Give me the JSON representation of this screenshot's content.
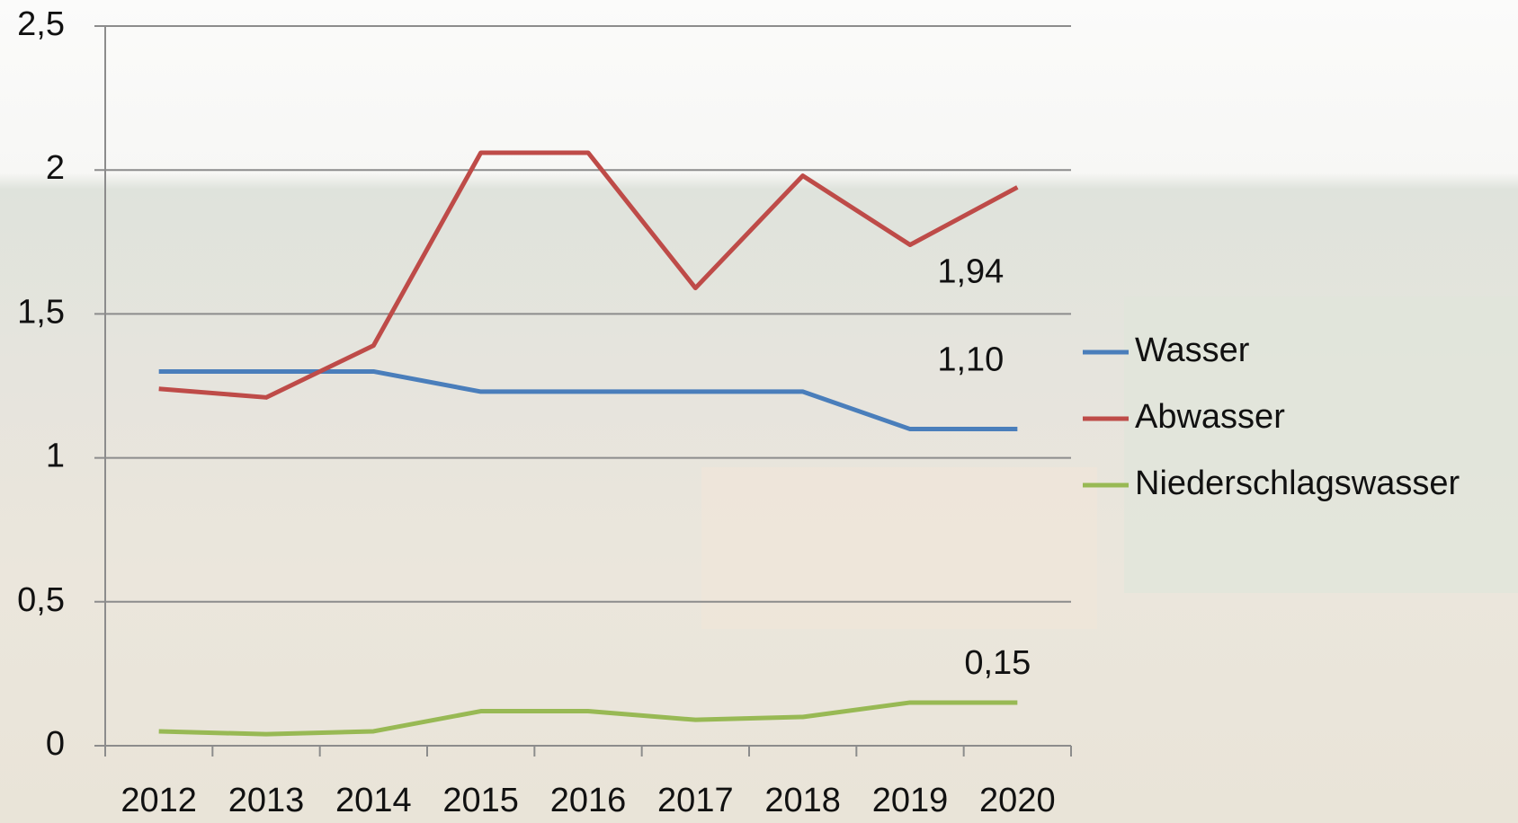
{
  "chart_data": {
    "type": "line",
    "categories": [
      "2012",
      "2013",
      "2014",
      "2015",
      "2016",
      "2017",
      "2018",
      "2019",
      "2020"
    ],
    "series": [
      {
        "name": "Wasser",
        "color": "#4a7ebb",
        "values": [
          1.3,
          1.3,
          1.3,
          1.23,
          1.23,
          1.23,
          1.23,
          1.1,
          1.1
        ],
        "value_labels": [
          null,
          null,
          null,
          null,
          null,
          null,
          null,
          null,
          "1,10"
        ]
      },
      {
        "name": "Abwasser",
        "color": "#be4b48",
        "values": [
          1.24,
          1.21,
          1.39,
          2.06,
          2.06,
          1.59,
          1.98,
          1.74,
          1.94
        ],
        "value_labels": [
          null,
          null,
          null,
          null,
          null,
          null,
          null,
          null,
          "1,94"
        ]
      },
      {
        "name": "Niederschlagswasser",
        "color": "#98b954",
        "values": [
          0.05,
          0.04,
          0.05,
          0.12,
          0.12,
          0.09,
          0.1,
          0.15,
          0.15
        ],
        "value_labels": [
          null,
          null,
          null,
          null,
          null,
          null,
          null,
          null,
          "0,15"
        ]
      }
    ],
    "ylim": [
      0,
      2.5
    ],
    "yticks": [
      0,
      {
        "value": 0.5,
        "label": "0,5"
      },
      1,
      {
        "value": 1.5,
        "label": "1,5"
      },
      2,
      {
        "value": 2.5,
        "label": "2,5"
      }
    ],
    "grid": true,
    "legend": "right"
  }
}
